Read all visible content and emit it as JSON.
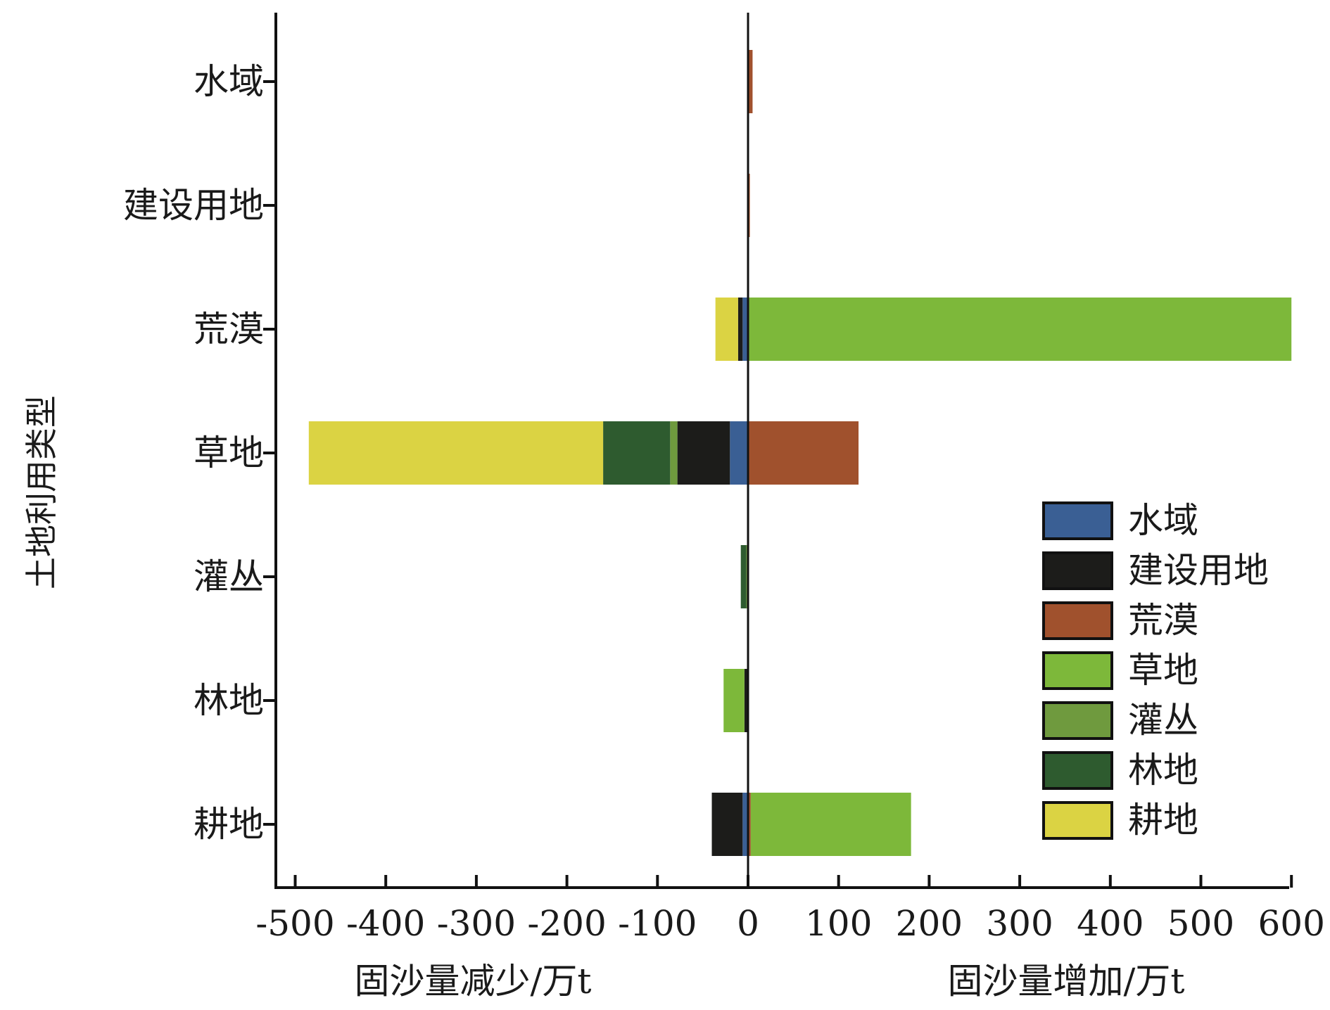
{
  "chart_data": {
    "type": "bar",
    "orientation": "horizontal",
    "stacked": true,
    "ylabel": "土地利用类型",
    "xlabel_left": "固沙量减少/万t",
    "xlabel_right": "固沙量增加/万t",
    "xlim": [
      -500,
      600
    ],
    "xticks": [
      -500,
      -400,
      -300,
      -200,
      -100,
      0,
      100,
      200,
      300,
      400,
      500,
      600
    ],
    "xtick_labels": [
      "-500",
      "-400",
      "-300",
      "-200",
      "-100",
      "0",
      "100",
      "200",
      "300",
      "400",
      "500",
      "600"
    ],
    "categories": [
      "水域",
      "建设用地",
      "荒漠",
      "草地",
      "灌丛",
      "林地",
      "耕地"
    ],
    "legend_position": "lower-right",
    "grid": false,
    "series": [
      {
        "name": "水域",
        "color": "#3a5f94",
        "values": [
          0,
          0,
          -6,
          -20,
          0,
          0,
          -6
        ]
      },
      {
        "name": "建设用地",
        "color": "#1c1c1a",
        "values": [
          0,
          0,
          -5,
          -58,
          0,
          -4,
          -34
        ]
      },
      {
        "name": "荒漠",
        "color": "#a0512d",
        "values": [
          5,
          2,
          0,
          122,
          0,
          0,
          3
        ]
      },
      {
        "name": "草地",
        "color": "#7db83a",
        "values": [
          0,
          0,
          600,
          0,
          0,
          -23,
          177
        ]
      },
      {
        "name": "灌丛",
        "color": "#6f9a3e",
        "values": [
          0,
          0,
          0,
          -8,
          -2,
          0,
          0
        ]
      },
      {
        "name": "林地",
        "color": "#2e5b2f",
        "values": [
          0,
          0,
          0,
          -74,
          -6,
          0,
          0
        ]
      },
      {
        "name": "耕地",
        "color": "#dbd343",
        "values": [
          0,
          0,
          -25,
          -325,
          0,
          0,
          0
        ]
      }
    ]
  }
}
